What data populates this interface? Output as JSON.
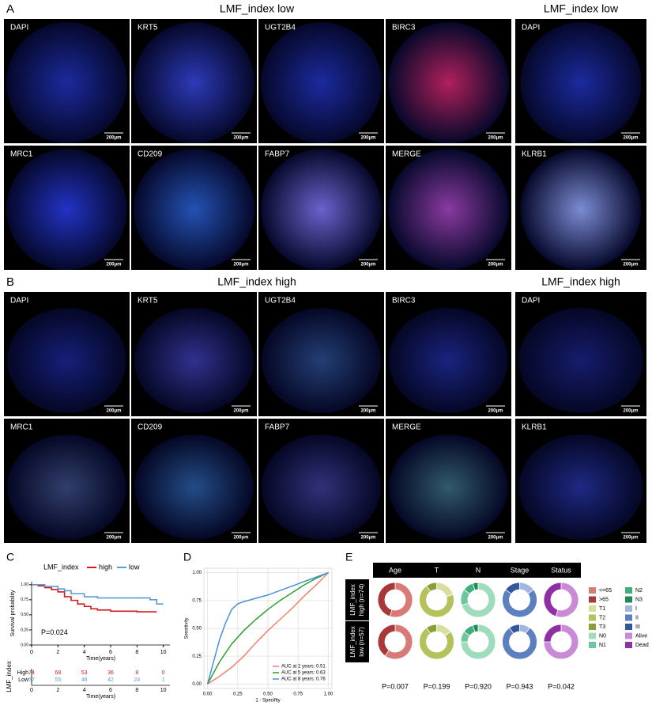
{
  "figure": {
    "panels": [
      {
        "label": "A",
        "title": "LMF_index low",
        "side_title": "LMF_index low",
        "tiles": [
          [
            "DAPI",
            "KRT5",
            "UGT2B4",
            "BIRC3"
          ],
          [
            "MRC1",
            "CD209",
            "FABP7",
            "MERGE"
          ]
        ],
        "side_tiles": [
          "DAPI",
          "KLRB1"
        ],
        "scale_bar": "200μm"
      },
      {
        "label": "B",
        "title": "LMF_index high",
        "side_title": "LMF_index high",
        "tiles": [
          [
            "DAPI",
            "KRT5",
            "UGT2B4",
            "BIRC3"
          ],
          [
            "MRC1",
            "CD209",
            "FABP7",
            "MERGE"
          ]
        ],
        "side_tiles": [
          "DAPI",
          "KLRB1"
        ],
        "scale_bar": "200μm"
      }
    ]
  },
  "chart_data": [
    {
      "type": "line",
      "label": "C",
      "legend_title": "LMF_index",
      "ylabel": "Survival probability",
      "xlabel": "Time(years)",
      "annotation": "P=0.024",
      "xlim": [
        0,
        10.5
      ],
      "xticks": [
        0,
        2,
        4,
        6,
        8,
        10
      ],
      "ylim": [
        0,
        1.05
      ],
      "yticks": [
        {
          "value": 0,
          "label": "0.00"
        },
        0.25,
        {
          "value": 0.5,
          "label": "0.50"
        },
        0.75,
        {
          "value": 1,
          "label": "1.00"
        }
      ],
      "series": [
        {
          "name": "high",
          "color": "#d7191c",
          "x": [
            0,
            0.5,
            1,
            1.5,
            2,
            2.5,
            3,
            3.5,
            4,
            4.5,
            5,
            6,
            7,
            8,
            9,
            9.5
          ],
          "values": [
            1,
            0.98,
            0.95,
            0.92,
            0.88,
            0.8,
            0.74,
            0.68,
            0.64,
            0.6,
            0.58,
            0.56,
            0.56,
            0.55,
            0.55,
            0.55
          ]
        },
        {
          "name": "low",
          "color": "#5b9bd5",
          "x": [
            0,
            0.5,
            1,
            2,
            2.5,
            3,
            4,
            5,
            6,
            7,
            8,
            9,
            9.5,
            10
          ],
          "values": [
            1,
            1,
            0.97,
            0.93,
            0.9,
            0.85,
            0.8,
            0.78,
            0.78,
            0.78,
            0.78,
            0.75,
            0.68,
            0.68
          ]
        }
      ],
      "risk_table": {
        "ylabel": "LMF_index",
        "xlabel": "Time(years)",
        "rows": [
          {
            "name": "High",
            "color": "#d7191c",
            "values": [
              74,
              68,
              53,
              36,
              8,
              0
            ]
          },
          {
            "name": "Low",
            "color": "#5b9bd5",
            "values": [
              57,
              55,
              48,
              42,
              24,
              1
            ]
          }
        ]
      }
    },
    {
      "type": "line",
      "label": "D",
      "xlabel": "1 - Specifity",
      "ylabel": "Sensitivity",
      "xlim": [
        -0.03,
        1.03
      ],
      "ylim": [
        -0.04,
        1.04
      ],
      "xticks": [
        {
          "value": 0,
          "label": "0.00"
        },
        0.25,
        {
          "value": 0.5,
          "label": "0.50"
        },
        0.75,
        {
          "value": 1,
          "label": "1.00"
        }
      ],
      "yticks": [
        {
          "value": 0,
          "label": "0.00"
        },
        0.25,
        {
          "value": 0.5,
          "label": "0.50"
        },
        0.75,
        {
          "value": 1,
          "label": "1.00"
        }
      ],
      "series": [
        {
          "name": "AUC at 2 years: 0.51",
          "color": "#f08070",
          "x": [
            0,
            0.1,
            0.2,
            0.3,
            0.4,
            0.5,
            0.6,
            0.7,
            0.8,
            0.9,
            1
          ],
          "values": [
            0,
            0.07,
            0.15,
            0.25,
            0.37,
            0.48,
            0.58,
            0.68,
            0.79,
            0.89,
            1
          ]
        },
        {
          "name": "AUC at 5 years: 0.63",
          "color": "#2ca02c",
          "x": [
            0,
            0.1,
            0.2,
            0.3,
            0.4,
            0.5,
            0.6,
            0.7,
            0.8,
            0.9,
            1
          ],
          "values": [
            0,
            0.2,
            0.36,
            0.48,
            0.58,
            0.67,
            0.75,
            0.82,
            0.89,
            0.95,
            1
          ]
        },
        {
          "name": "AUC at 8 years: 0.76",
          "color": "#4a90d9",
          "x": [
            0,
            0.05,
            0.1,
            0.15,
            0.2,
            0.25,
            0.3,
            0.4,
            0.5,
            0.6,
            0.7,
            0.8,
            0.9,
            1
          ],
          "values": [
            0,
            0.2,
            0.4,
            0.55,
            0.67,
            0.72,
            0.74,
            0.77,
            0.8,
            0.84,
            0.88,
            0.92,
            0.96,
            1
          ]
        }
      ]
    },
    {
      "type": "donut",
      "label": "E",
      "columns": [
        {
          "name": "Age",
          "p": "P=0.007",
          "groups": [
            {
              "name": "<=65",
              "color": "#d87a78"
            },
            {
              "name": ">65",
              "color": "#a8383a"
            }
          ]
        },
        {
          "name": "T",
          "p": "P=0.199",
          "groups": [
            {
              "name": "T1",
              "color": "#d9dd9e"
            },
            {
              "name": "T2",
              "color": "#b5c25c"
            },
            {
              "name": "T3",
              "color": "#8a9f38"
            }
          ]
        },
        {
          "name": "N",
          "p": "P=0.920",
          "groups": [
            {
              "name": "N0",
              "color": "#9fdcbc"
            },
            {
              "name": "N1",
              "color": "#6cc79c"
            },
            {
              "name": "N2",
              "color": "#3fae7a"
            },
            {
              "name": "N3",
              "color": "#1e8a5a"
            }
          ]
        },
        {
          "name": "Stage",
          "p": "P=0.943",
          "groups": [
            {
              "name": "I",
              "color": "#a3b7de"
            },
            {
              "name": "II",
              "color": "#5b7fbf"
            },
            {
              "name": "III",
              "color": "#34569e"
            }
          ]
        },
        {
          "name": "Status",
          "p": "P=0.042",
          "groups": [
            {
              "name": "Alive",
              "color": "#c98ad6"
            },
            {
              "name": "Dead",
              "color": "#8e2fa3"
            }
          ]
        }
      ],
      "rows": [
        {
          "label_lines": [
            "LMF_index",
            "high (n=74)"
          ],
          "values": [
            [
              55,
              45
            ],
            [
              20,
              70,
              10
            ],
            [
              70,
              15,
              10,
              5
            ],
            [
              15,
              70,
              15
            ],
            [
              55,
              45
            ]
          ]
        },
        {
          "label_lines": [
            "LMF_index",
            "low (n=57)"
          ],
          "values": [
            [
              60,
              40
            ],
            [
              15,
              75,
              10
            ],
            [
              75,
              10,
              10,
              5
            ],
            [
              10,
              80,
              10
            ],
            [
              75,
              25
            ]
          ]
        }
      ]
    }
  ]
}
